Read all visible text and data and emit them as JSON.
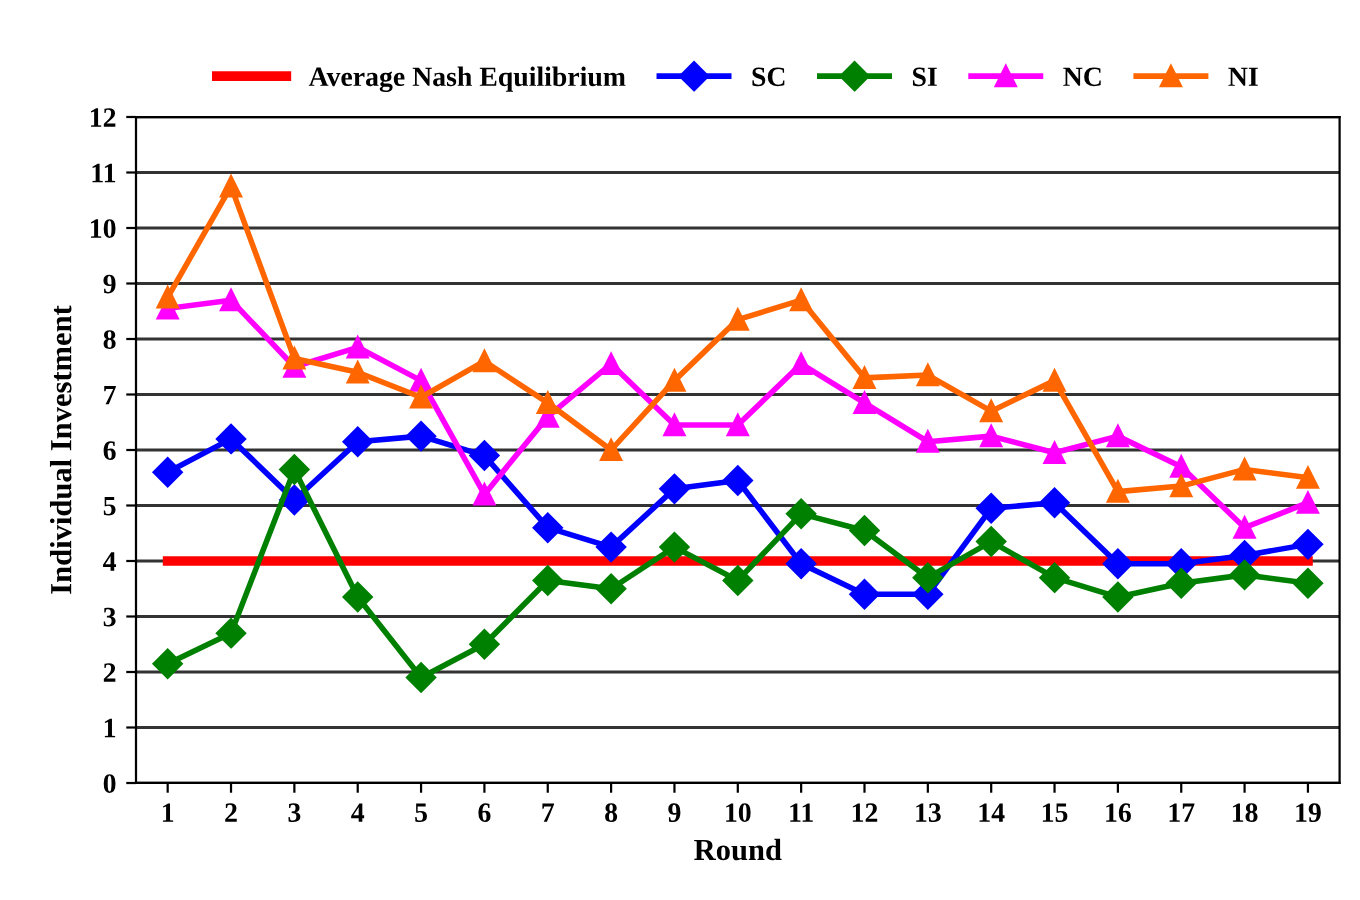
{
  "chart_data": {
    "type": "line",
    "xlabel": "Round",
    "ylabel": "Individual Investment",
    "categories": [
      "1",
      "2",
      "3",
      "4",
      "5",
      "6",
      "7",
      "8",
      "9",
      "10",
      "11",
      "12",
      "13",
      "14",
      "15",
      "16",
      "17",
      "18",
      "19"
    ],
    "series": [
      {
        "name": "Average Nash Equilibrium",
        "color": "#ff0000",
        "marker": "none",
        "values": [
          4,
          4,
          4,
          4,
          4,
          4,
          4,
          4,
          4,
          4,
          4,
          4,
          4,
          4,
          4,
          4,
          4,
          4,
          4
        ]
      },
      {
        "name": "SC",
        "color": "#0000ff",
        "marker": "diamond",
        "values": [
          5.6,
          6.2,
          5.1,
          6.15,
          6.25,
          5.9,
          4.6,
          4.25,
          5.3,
          5.45,
          3.95,
          3.4,
          3.4,
          4.95,
          5.05,
          3.95,
          3.95,
          4.1,
          4.3
        ]
      },
      {
        "name": "SI",
        "color": "#008000",
        "marker": "diamond",
        "values": [
          2.15,
          2.7,
          5.65,
          3.35,
          1.9,
          2.5,
          3.65,
          3.5,
          4.25,
          3.65,
          4.85,
          4.55,
          3.7,
          4.35,
          3.7,
          3.35,
          3.6,
          3.75,
          3.6
        ]
      },
      {
        "name": "NC",
        "color": "#ff00ff",
        "marker": "triangle",
        "values": [
          8.55,
          8.7,
          7.5,
          7.85,
          7.25,
          5.2,
          6.6,
          7.55,
          6.45,
          6.45,
          7.55,
          6.85,
          6.15,
          6.25,
          5.95,
          6.25,
          5.7,
          4.6,
          5.05
        ]
      },
      {
        "name": "NI",
        "color": "#ff6600",
        "marker": "triangle",
        "values": [
          8.75,
          10.75,
          7.65,
          7.4,
          6.95,
          7.6,
          6.85,
          6.0,
          7.25,
          8.35,
          8.7,
          7.3,
          7.35,
          6.7,
          7.25,
          5.25,
          5.35,
          5.65,
          5.5
        ]
      }
    ],
    "ylim": [
      0,
      12
    ],
    "yticks": [
      0,
      1,
      2,
      3,
      4,
      5,
      6,
      7,
      8,
      9,
      10,
      11,
      12
    ],
    "grid": "y",
    "legend": "top"
  }
}
